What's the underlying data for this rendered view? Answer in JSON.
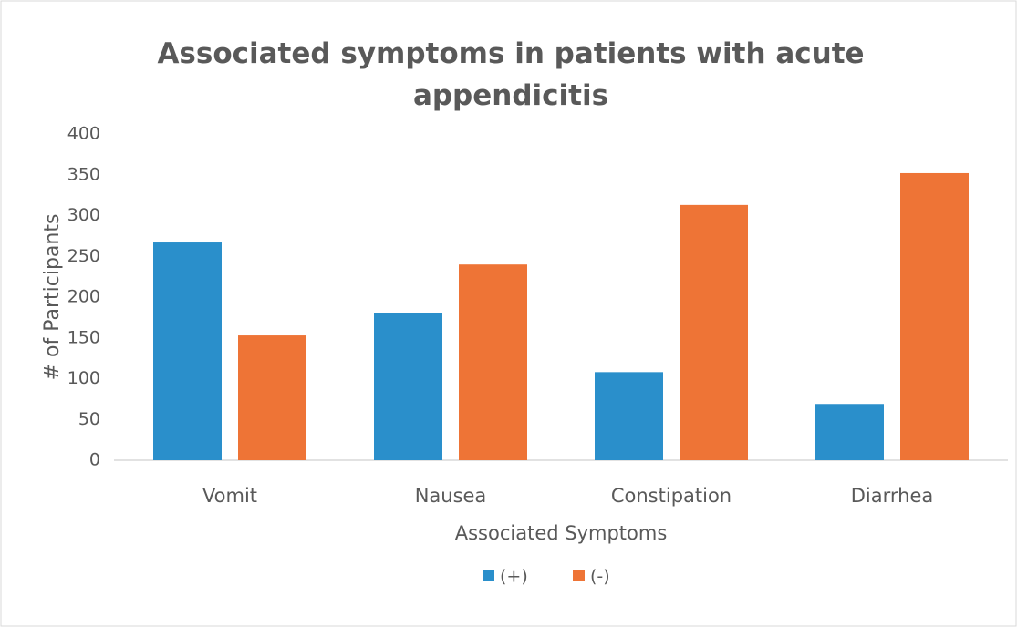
{
  "chart_data": {
    "type": "bar",
    "title": "Associated symptoms in patients with acute appendicitis",
    "x_label": "Associated Symptoms",
    "y_label": "# of Participants",
    "categories": [
      "Vomit",
      "Nausea",
      "Constipation",
      "Diarrhea"
    ],
    "series": [
      {
        "name": "(+)",
        "color": "#2a8fcb",
        "values": [
          267,
          181,
          108,
          69
        ]
      },
      {
        "name": "(-)",
        "color": "#ee7436",
        "values": [
          153,
          240,
          313,
          352
        ]
      }
    ],
    "ylim": [
      0,
      400
    ],
    "yticks": [
      0,
      50,
      100,
      150,
      200,
      250,
      300,
      350,
      400
    ],
    "grid": false,
    "legend": "bottom"
  }
}
